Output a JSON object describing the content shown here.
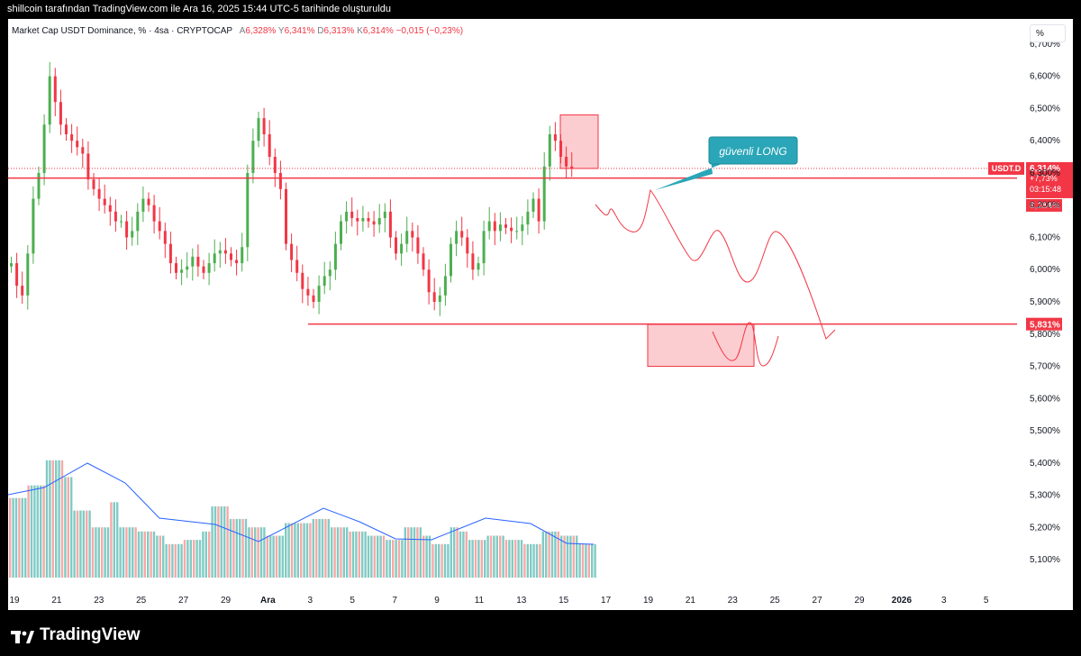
{
  "header": {
    "title": "shillcoin tarafından TradingView.com ile Ara 16, 2025 15:44 UTC-5 tarihinde oluşturuldu"
  },
  "legend": {
    "symbol": "Market Cap USDT Dominance, % · 4sa · CRYPTOCAP",
    "open_label": "A",
    "open": "6,328%",
    "high_label": "Y",
    "high": "6,341%",
    "low_label": "D",
    "low": "6,313%",
    "close_label": "K",
    "close": "6,314%",
    "change": "−0,015 (−0,23%)"
  },
  "scale_button": "%",
  "price_tag": {
    "symbol": "USDT.D",
    "value": "6,314%",
    "change": "+7,73%",
    "countdown": "03:15:48",
    "ma_value": "6,284%"
  },
  "support_tag": "5,831%",
  "annotation": "güvenli LONG",
  "footer": {
    "brand": "TradingView"
  },
  "colors": {
    "up": "#26a69a",
    "down": "#ef5350",
    "candle_up": "#4caf50",
    "candle_down": "#f23645",
    "line": "#f23645",
    "ma": "#2962ff"
  },
  "chart_data": {
    "type": "candlestick",
    "y_axis": {
      "min": 5.05,
      "max": 6.75,
      "unit": "%",
      "ticks": [
        "6,700%",
        "6,600%",
        "6,500%",
        "6,400%",
        "6,300%",
        "6,200%",
        "6,100%",
        "6,000%",
        "5,900%",
        "5,800%",
        "5,700%",
        "5,600%",
        "5,500%",
        "5,400%",
        "5,300%",
        "5,200%",
        "5,100%"
      ]
    },
    "x_axis": {
      "ticks": [
        "19",
        "21",
        "23",
        "25",
        "27",
        "29",
        "Ara",
        "3",
        "5",
        "7",
        "9",
        "11",
        "13",
        "15",
        "17",
        "19",
        "21",
        "23",
        "25",
        "27",
        "29",
        "2026",
        "3",
        "5"
      ]
    },
    "horizontal_lines": [
      6.284,
      5.831
    ],
    "current_price": 6.314,
    "resistance_zone": {
      "low": 6.314,
      "high": 6.48
    },
    "target_zone": {
      "low": 5.7,
      "high": 5.83
    },
    "close_series": [
      6.02,
      5.95,
      5.92,
      6.05,
      6.22,
      6.3,
      6.45,
      6.6,
      6.52,
      6.45,
      6.42,
      6.4,
      6.38,
      6.36,
      6.28,
      6.25,
      6.22,
      6.2,
      6.18,
      6.15,
      6.15,
      6.1,
      6.12,
      6.18,
      6.22,
      6.2,
      6.15,
      6.12,
      6.08,
      6.02,
      5.99,
      6.0,
      6.01,
      6.04,
      6.01,
      5.99,
      6.02,
      6.05,
      6.06,
      6.05,
      6.03,
      6.02,
      6.07,
      6.3,
      6.4,
      6.47,
      6.42,
      6.35,
      6.3,
      6.25,
      6.08,
      6.03,
      5.99,
      5.94,
      5.92,
      5.9,
      5.95,
      5.98,
      6.0,
      6.08,
      6.15,
      6.18,
      6.16,
      6.15,
      6.16,
      6.15,
      6.14,
      6.16,
      6.18,
      6.1,
      6.05,
      6.08,
      6.12,
      6.1,
      6.05,
      6.0,
      5.93,
      5.9,
      5.92,
      5.98,
      6.08,
      6.12,
      6.1,
      6.05,
      6.0,
      6.02,
      6.12,
      6.15,
      6.12,
      6.14,
      6.13,
      6.12,
      6.12,
      6.14,
      6.18,
      6.22,
      6.15,
      6.32,
      6.42,
      6.4,
      6.35,
      6.32,
      6.314
    ]
  }
}
